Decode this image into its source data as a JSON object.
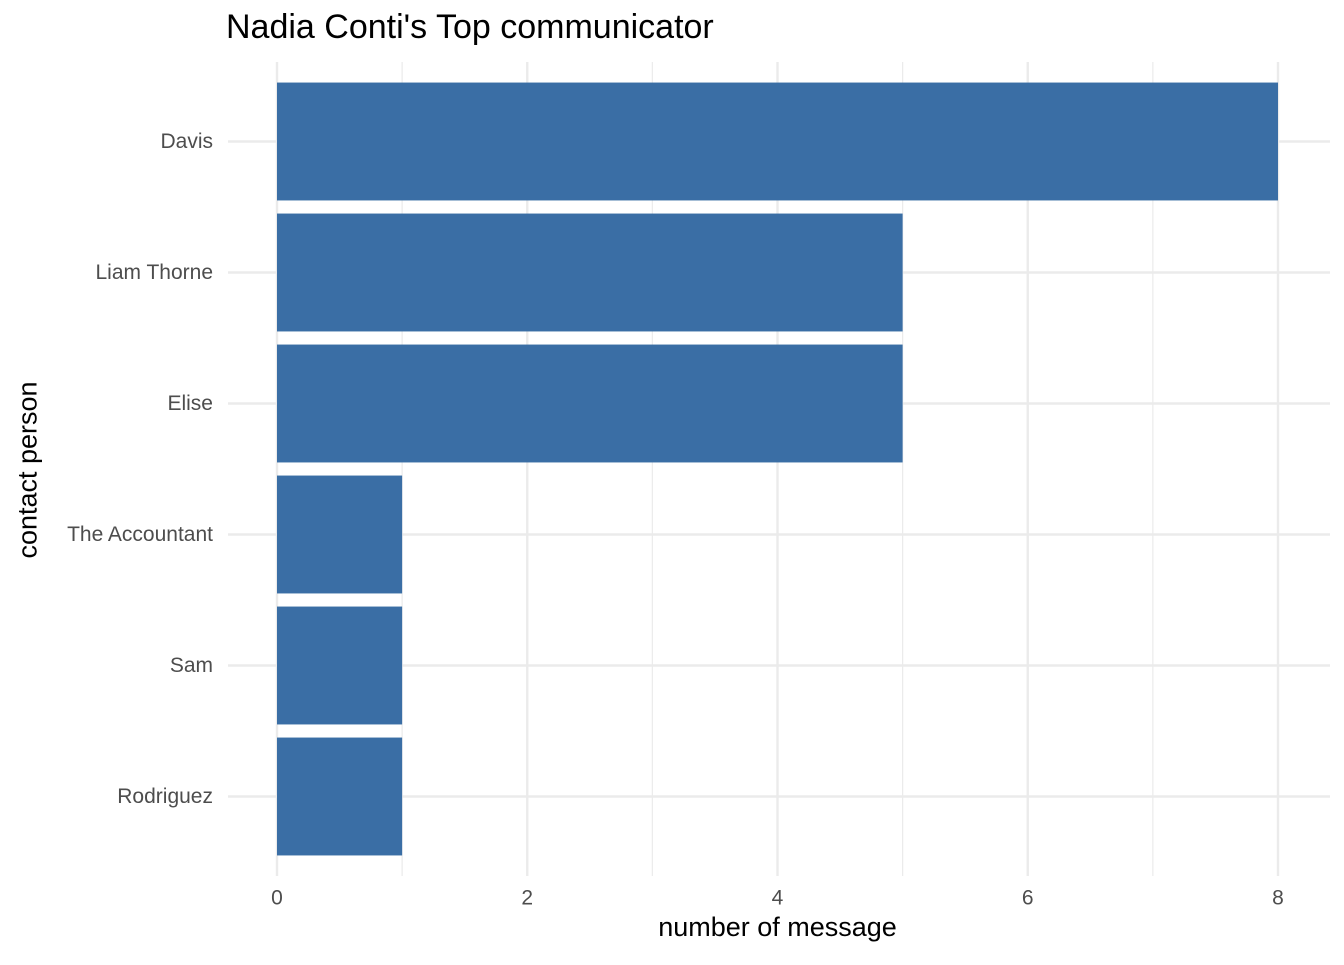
{
  "chart_data": {
    "type": "bar",
    "orientation": "horizontal",
    "title": "Nadia Conti's Top communicator",
    "xlabel": "number of message",
    "ylabel": "contact person",
    "categories": [
      "Davis",
      "Liam Thorne",
      "Elise",
      "The Accountant",
      "Sam",
      "Rodriguez"
    ],
    "values": [
      8,
      5,
      5,
      1,
      1,
      1
    ],
    "xlim": [
      0,
      8
    ],
    "xticks": [
      0,
      2,
      4,
      6,
      8
    ],
    "grid": true,
    "bar_color": "#3a6ea5",
    "grid_color": "#ebebeb"
  }
}
